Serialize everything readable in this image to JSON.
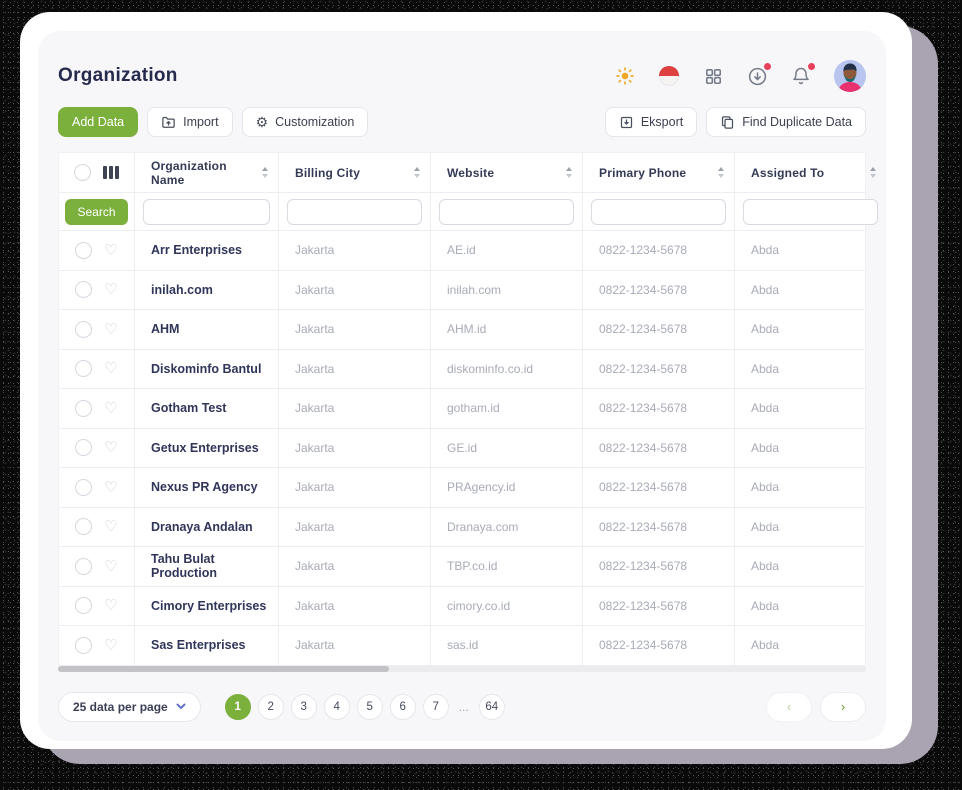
{
  "page": {
    "title": "Organization"
  },
  "header_icons": {
    "theme": "sun-icon",
    "language_flag": "indonesia-flag",
    "apps": "grid-icon",
    "download": "download-circle-icon",
    "notifications": "bell-icon",
    "avatar": "user-avatar"
  },
  "toolbar": {
    "add_data": "Add Data",
    "import": "Import",
    "customization": "Customization",
    "eksport": "Eksport",
    "find_duplicate": "Find Duplicate Data"
  },
  "table": {
    "columns": [
      "Organization Name",
      "Billing City",
      "Website",
      "Primary Phone",
      "Assigned To"
    ],
    "search_label": "Search",
    "rows": [
      {
        "name": "Arr Enterprises",
        "city": "Jakarta",
        "website": "AE.id",
        "phone": "0822-1234-5678",
        "assigned": "Abda"
      },
      {
        "name": "inilah.com",
        "city": "Jakarta",
        "website": "inilah.com",
        "phone": "0822-1234-5678",
        "assigned": "Abda"
      },
      {
        "name": "AHM",
        "city": "Jakarta",
        "website": "AHM.id",
        "phone": "0822-1234-5678",
        "assigned": "Abda"
      },
      {
        "name": "Diskominfo Bantul",
        "city": "Jakarta",
        "website": "diskominfo.co.id",
        "phone": "0822-1234-5678",
        "assigned": "Abda"
      },
      {
        "name": "Gotham Test",
        "city": "Jakarta",
        "website": "gotham.id",
        "phone": "0822-1234-5678",
        "assigned": "Abda"
      },
      {
        "name": "Getux Enterprises",
        "city": "Jakarta",
        "website": "GE.id",
        "phone": "0822-1234-5678",
        "assigned": "Abda"
      },
      {
        "name": "Nexus PR Agency",
        "city": "Jakarta",
        "website": "PRAgency.id",
        "phone": "0822-1234-5678",
        "assigned": "Abda"
      },
      {
        "name": "Dranaya Andalan",
        "city": "Jakarta",
        "website": "Dranaya.com",
        "phone": "0822-1234-5678",
        "assigned": "Abda"
      },
      {
        "name": "Tahu Bulat Production",
        "city": "Jakarta",
        "website": "TBP.co.id",
        "phone": "0822-1234-5678",
        "assigned": "Abda"
      },
      {
        "name": "Cimory Enterprises",
        "city": "Jakarta",
        "website": "cimory.co.id",
        "phone": "0822-1234-5678",
        "assigned": "Abda"
      },
      {
        "name": "Sas Enterprises",
        "city": "Jakarta",
        "website": "sas.id",
        "phone": "0822-1234-5678",
        "assigned": "Abda"
      }
    ]
  },
  "pagination": {
    "per_page_label": "25 data per page",
    "pages": [
      "1",
      "2",
      "3",
      "4",
      "5",
      "6",
      "7"
    ],
    "ellipsis": "...",
    "last_page": "64",
    "active_page": "1",
    "prev_label": "‹",
    "next_label": "›"
  },
  "colors": {
    "accent_green": "#7cb03d",
    "title_navy": "#262b4d",
    "muted_text": "#a8abb8",
    "badge_red": "#e8425a",
    "flag_red": "#df4040",
    "card_shadow_gray": "#aaa4b2"
  }
}
